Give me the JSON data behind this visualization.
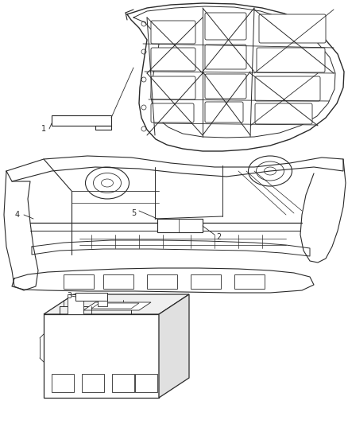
{
  "background_color": "#ffffff",
  "line_color": "#2a2a2a",
  "label_color": "#000000",
  "fig_width": 4.38,
  "fig_height": 5.33,
  "dpi": 100
}
